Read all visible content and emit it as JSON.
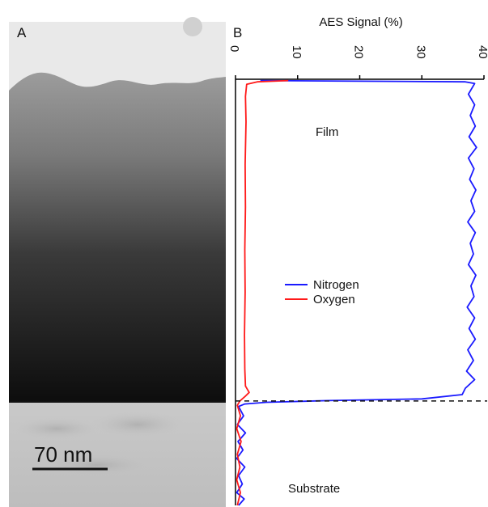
{
  "panel_a": {
    "label": "A",
    "scale_bar_label": "70 nm"
  },
  "panel_b": {
    "label": "B"
  },
  "colors": {
    "nitrogen": "#1a1aff",
    "oxygen": "#ff1a1a",
    "axis": "#000000"
  },
  "chart_data": {
    "type": "line",
    "orientation": "value axis on top, depth increasing downward",
    "title": "",
    "xlabel": "AES Signal (%)",
    "xlim": [
      0,
      40
    ],
    "xticks": [
      0,
      10,
      20,
      30,
      40
    ],
    "ylabel": "",
    "y_relative_depth_range": [
      0,
      1
    ],
    "grid": false,
    "legend_placement": "center",
    "annotations": [
      "Film",
      "Substrate"
    ],
    "film_substrate_interface_depth": 0.755,
    "series": [
      {
        "name": "Nitrogen",
        "points": [
          [
            4,
            0.003
          ],
          [
            37,
            0.006
          ],
          [
            38.5,
            0.01
          ],
          [
            37.5,
            0.035
          ],
          [
            38.5,
            0.06
          ],
          [
            37.8,
            0.085
          ],
          [
            38.6,
            0.11
          ],
          [
            37.6,
            0.135
          ],
          [
            38.8,
            0.16
          ],
          [
            37.5,
            0.185
          ],
          [
            38.4,
            0.21
          ],
          [
            37.7,
            0.235
          ],
          [
            38.7,
            0.26
          ],
          [
            37.9,
            0.285
          ],
          [
            38.5,
            0.31
          ],
          [
            37.4,
            0.335
          ],
          [
            38.6,
            0.36
          ],
          [
            37.8,
            0.385
          ],
          [
            38.3,
            0.41
          ],
          [
            37.5,
            0.435
          ],
          [
            38.7,
            0.46
          ],
          [
            37.9,
            0.485
          ],
          [
            38.4,
            0.51
          ],
          [
            37.3,
            0.535
          ],
          [
            38.5,
            0.56
          ],
          [
            37.6,
            0.585
          ],
          [
            38.6,
            0.61
          ],
          [
            37.4,
            0.635
          ],
          [
            38.3,
            0.66
          ],
          [
            37.2,
            0.685
          ],
          [
            38.5,
            0.705
          ],
          [
            37.0,
            0.725
          ],
          [
            36.5,
            0.74
          ],
          [
            30,
            0.75
          ],
          [
            15,
            0.754
          ],
          [
            5,
            0.758
          ],
          [
            1.5,
            0.762
          ],
          [
            0.5,
            0.768
          ],
          [
            1.3,
            0.79
          ],
          [
            0.3,
            0.81
          ],
          [
            1.6,
            0.83
          ],
          [
            0.4,
            0.85
          ],
          [
            1.2,
            0.87
          ],
          [
            0.2,
            0.89
          ],
          [
            1.5,
            0.91
          ],
          [
            0.5,
            0.93
          ],
          [
            1.1,
            0.95
          ],
          [
            0.2,
            0.97
          ],
          [
            1.4,
            0.985
          ],
          [
            0.5,
            1.0
          ]
        ]
      },
      {
        "name": "Oxygen",
        "points": [
          [
            8.5,
            0.003
          ],
          [
            3.5,
            0.006
          ],
          [
            1.8,
            0.012
          ],
          [
            1.6,
            0.04
          ],
          [
            1.7,
            0.1
          ],
          [
            1.55,
            0.2
          ],
          [
            1.6,
            0.3
          ],
          [
            1.5,
            0.4
          ],
          [
            1.55,
            0.5
          ],
          [
            1.45,
            0.6
          ],
          [
            1.5,
            0.68
          ],
          [
            1.6,
            0.72
          ],
          [
            2.2,
            0.735
          ],
          [
            1.5,
            0.745
          ],
          [
            0.7,
            0.755
          ],
          [
            0.3,
            0.765
          ],
          [
            0.8,
            0.79
          ],
          [
            0.2,
            0.82
          ],
          [
            0.9,
            0.85
          ],
          [
            0.3,
            0.88
          ],
          [
            0.7,
            0.91
          ],
          [
            0.2,
            0.94
          ],
          [
            0.8,
            0.97
          ],
          [
            0.3,
            1.0
          ]
        ]
      }
    ]
  }
}
